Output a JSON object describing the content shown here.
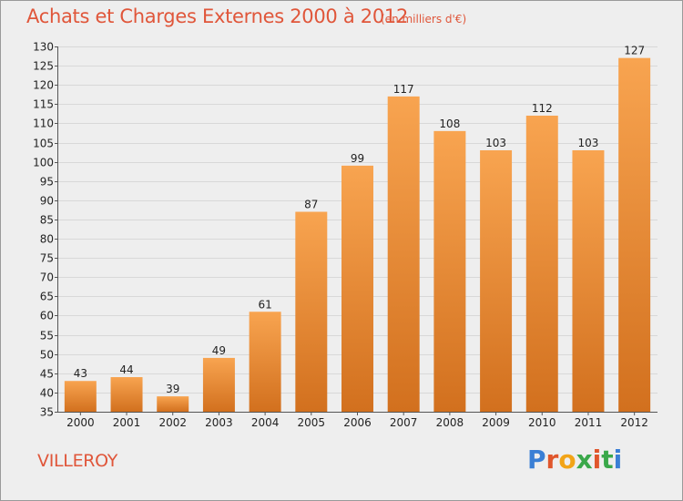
{
  "header": {
    "title": "Achats et Charges Externes 2000 à 2012",
    "subtitle": "(en milliers d'€)"
  },
  "commune": "VILLEROY",
  "logo": {
    "text": "Proxiti",
    "colors": [
      "#3a7fd5",
      "#e0562c",
      "#f2a417",
      "#3aa84a",
      "#e0562c",
      "#3aa84a",
      "#3a7fd5"
    ]
  },
  "colors": {
    "bar_top": "#f8a450",
    "bar_bottom": "#d2701e",
    "text": "#e0563a",
    "axis_text": "#222222",
    "grid": "#d8d8d8"
  },
  "chart_data": {
    "type": "bar",
    "categories": [
      "2000",
      "2001",
      "2002",
      "2003",
      "2004",
      "2005",
      "2006",
      "2007",
      "2008",
      "2009",
      "2010",
      "2011",
      "2012"
    ],
    "values": [
      43,
      44,
      39,
      49,
      61,
      87,
      99,
      117,
      108,
      103,
      112,
      103,
      127
    ],
    "title": "Achats et Charges Externes 2000 à 2012",
    "xlabel": "",
    "ylabel": "",
    "ylim": [
      35,
      130
    ],
    "ytick_step": 5,
    "grid": true,
    "data_labels": true
  }
}
